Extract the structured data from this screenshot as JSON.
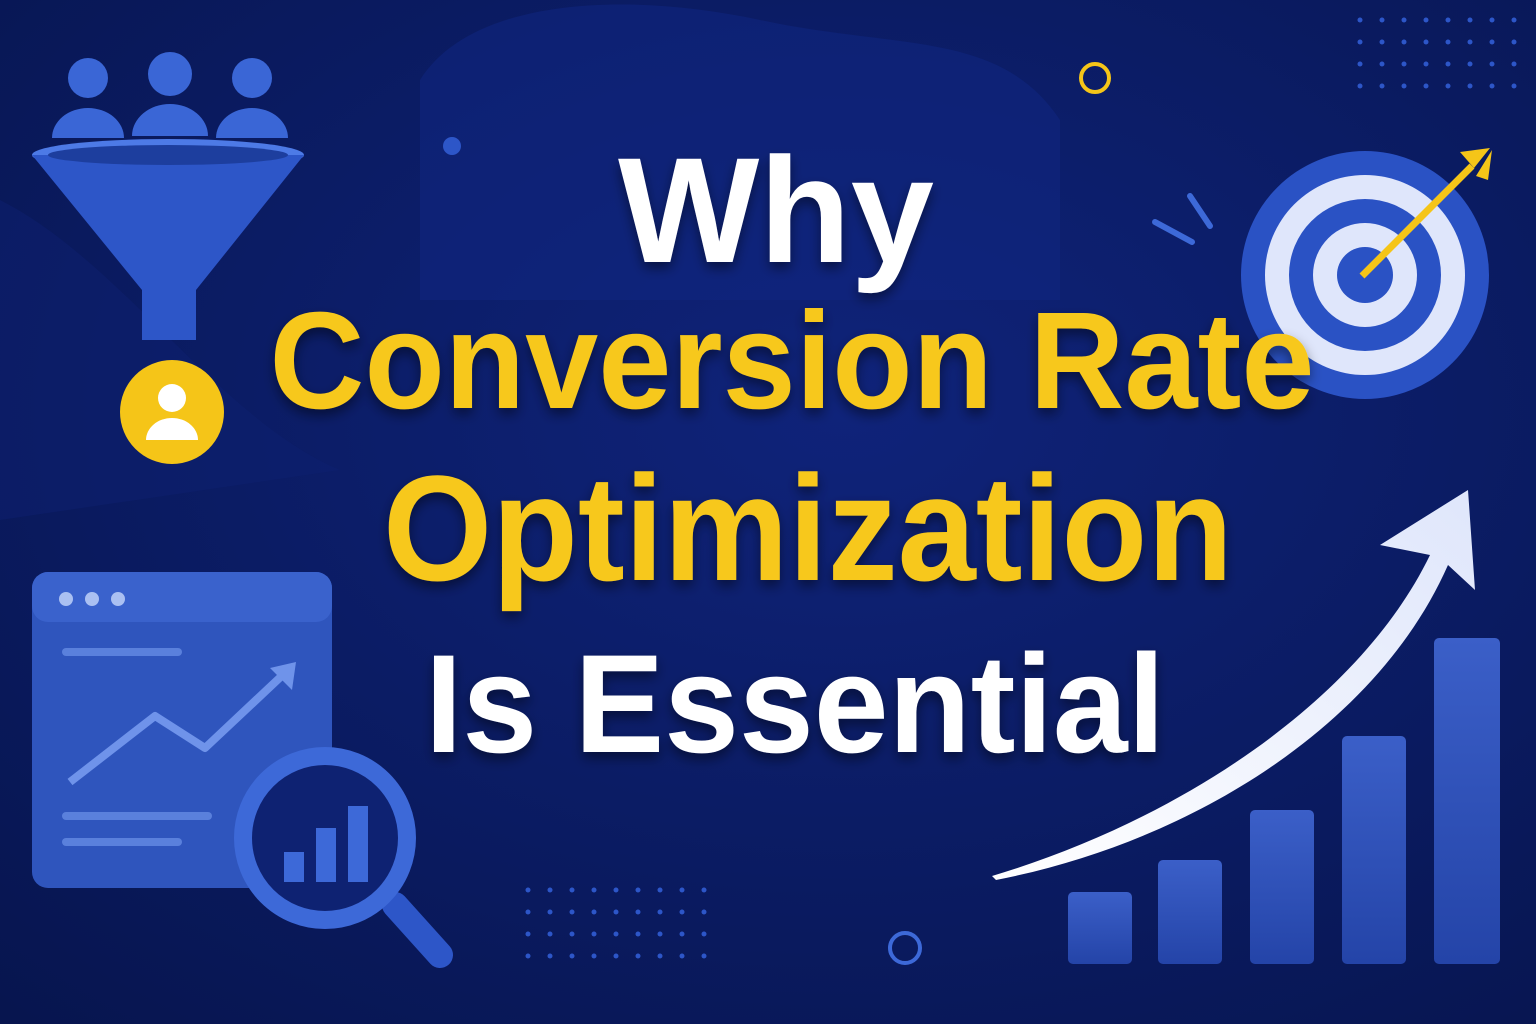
{
  "title": {
    "line1": "Why",
    "line2": "Conversion Rate",
    "line3": "Optimization",
    "line4": "Is Essential"
  }
}
